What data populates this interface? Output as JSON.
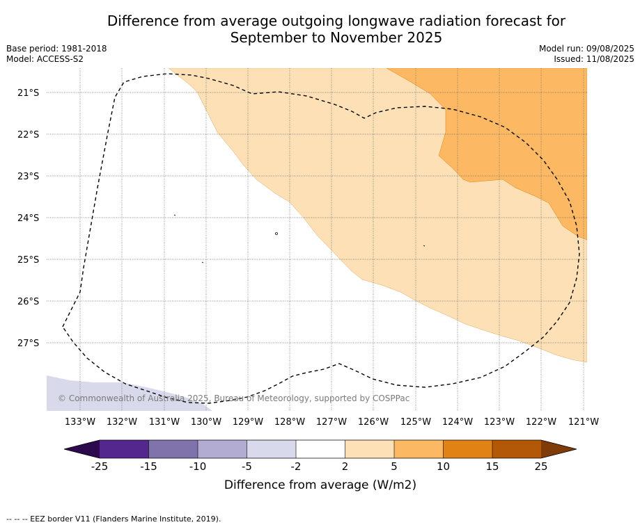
{
  "title_line1": "Difference from average outgoing longwave radiation forecast for",
  "title_line2": "September to November 2025",
  "base_period": "Base period: 1981-2018",
  "model": "Model: ACCESS-S2",
  "model_run": "Model run: 09/08/2025",
  "issued": "Issued: 11/08/2025",
  "copyright": "© Commonwealth of Australia 2025, Bureau of Meteorology, supported by COSPPac",
  "footer_note": "-- -- -- EEZ border V11 (Flanders Marine Institute, 2019).",
  "lat_labels": [
    "21°S",
    "22°S",
    "23°S",
    "24°S",
    "25°S",
    "26°S",
    "27°S"
  ],
  "lon_labels": [
    "133°W",
    "132°W",
    "131°W",
    "130°W",
    "129°W",
    "128°W",
    "127°W",
    "126°W",
    "125°W",
    "124°W",
    "123°W",
    "122°W",
    "121°W"
  ],
  "colorbar": {
    "label": "Difference from average (W/m2)",
    "ticks": [
      "-25",
      "-15",
      "-10",
      "-5",
      "-2",
      "2",
      "5",
      "10",
      "15",
      "25"
    ],
    "colors": [
      "#2d0a4e",
      "#54278f",
      "#8073ac",
      "#b2abd2",
      "#d8daeb",
      "#ffffff",
      "#fee0b6",
      "#fdb863",
      "#e08214",
      "#b35806",
      "#7f3b08"
    ]
  }
}
